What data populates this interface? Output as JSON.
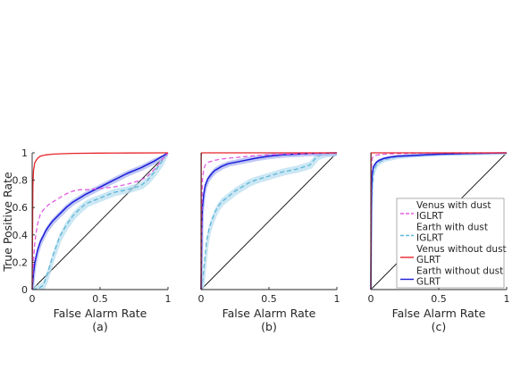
{
  "colors": {
    "venus_dust": "#e05ce0",
    "earth_dust": "#5fb6d6",
    "earth_dust_band": "#b9dff0",
    "venus_clear": "#e8242a",
    "earth_clear": "#1b1bd8",
    "earth_clear_band": "#aab4f2",
    "diagonal": "#111111",
    "axis": "#262626"
  },
  "ylabel": "True Positive Rate",
  "chart_data": [
    {
      "type": "line",
      "panel": "(a)",
      "xlabel": "False Alarm Rate",
      "xlim": [
        0,
        1
      ],
      "ylim": [
        0,
        1
      ],
      "xticks": [
        "0",
        "0.5",
        "1"
      ],
      "yticks": [
        "0",
        "0.2",
        "0.4",
        "0.6",
        "0.8",
        "1"
      ],
      "series": [
        {
          "key": "venus_dust",
          "x": [
            0,
            0.01,
            0.02,
            0.04,
            0.06,
            0.08,
            0.1,
            0.12,
            0.15,
            0.2,
            0.25,
            0.3,
            0.35,
            0.4,
            0.5,
            0.6,
            0.7,
            0.8,
            0.85,
            0.9,
            0.95,
            1
          ],
          "y": [
            0,
            0.22,
            0.35,
            0.48,
            0.55,
            0.58,
            0.6,
            0.62,
            0.64,
            0.67,
            0.7,
            0.72,
            0.73,
            0.73,
            0.74,
            0.75,
            0.77,
            0.8,
            0.83,
            0.88,
            0.94,
            1
          ]
        },
        {
          "key": "earth_dust",
          "x": [
            0,
            0.05,
            0.08,
            0.1,
            0.12,
            0.15,
            0.2,
            0.25,
            0.3,
            0.35,
            0.4,
            0.5,
            0.6,
            0.7,
            0.8,
            0.85,
            0.9,
            0.95,
            1
          ],
          "y": [
            0,
            0.01,
            0.03,
            0.08,
            0.14,
            0.24,
            0.38,
            0.47,
            0.54,
            0.59,
            0.63,
            0.67,
            0.71,
            0.73,
            0.76,
            0.8,
            0.86,
            0.93,
            1
          ],
          "band": 0.025
        },
        {
          "key": "venus_clear",
          "x": [
            0,
            0.005,
            0.01,
            0.02,
            0.04,
            0.06,
            0.1,
            0.15,
            0.2,
            0.3,
            0.5,
            0.7,
            1
          ],
          "y": [
            0,
            0.75,
            0.87,
            0.93,
            0.96,
            0.975,
            0.985,
            0.99,
            0.993,
            0.996,
            0.998,
            0.999,
            1
          ]
        },
        {
          "key": "earth_clear",
          "x": [
            0,
            0.01,
            0.02,
            0.04,
            0.06,
            0.08,
            0.1,
            0.12,
            0.15,
            0.2,
            0.25,
            0.3,
            0.35,
            0.4,
            0.5,
            0.6,
            0.7,
            0.8,
            0.9,
            1
          ],
          "y": [
            0,
            0.12,
            0.2,
            0.29,
            0.35,
            0.39,
            0.43,
            0.46,
            0.5,
            0.55,
            0.6,
            0.64,
            0.67,
            0.7,
            0.75,
            0.8,
            0.85,
            0.89,
            0.94,
            1
          ],
          "band": 0.02
        }
      ]
    },
    {
      "type": "line",
      "panel": "(b)",
      "xlabel": "False Alarm Rate",
      "xlim": [
        0,
        1
      ],
      "ylim": [
        0,
        1
      ],
      "xticks": [
        "0",
        "0.5",
        "1"
      ],
      "yticks": [],
      "series": [
        {
          "key": "venus_dust",
          "x": [
            0,
            0.005,
            0.01,
            0.02,
            0.03,
            0.05,
            0.08,
            0.1,
            0.15,
            0.2,
            0.3,
            0.4,
            0.5,
            0.6,
            0.8,
            1
          ],
          "y": [
            0,
            0.55,
            0.8,
            0.88,
            0.91,
            0.93,
            0.94,
            0.945,
            0.955,
            0.96,
            0.97,
            0.98,
            0.985,
            0.99,
            0.995,
            1
          ]
        },
        {
          "key": "earth_dust",
          "x": [
            0,
            0.01,
            0.02,
            0.03,
            0.04,
            0.06,
            0.08,
            0.1,
            0.12,
            0.15,
            0.2,
            0.25,
            0.3,
            0.35,
            0.4,
            0.5,
            0.6,
            0.7,
            0.8,
            0.85,
            0.9,
            1
          ],
          "y": [
            0,
            0.05,
            0.15,
            0.25,
            0.35,
            0.45,
            0.51,
            0.56,
            0.6,
            0.64,
            0.68,
            0.72,
            0.75,
            0.78,
            0.8,
            0.83,
            0.86,
            0.88,
            0.91,
            0.97,
            0.99,
            1
          ],
          "band": 0.025
        },
        {
          "key": "venus_clear",
          "x": [
            0,
            0.001,
            0.003,
            1
          ],
          "y": [
            0,
            0.98,
            1,
            1
          ]
        },
        {
          "key": "earth_clear",
          "x": [
            0,
            0.005,
            0.01,
            0.02,
            0.03,
            0.05,
            0.08,
            0.1,
            0.15,
            0.2,
            0.3,
            0.4,
            0.5,
            0.6,
            0.7,
            0.8,
            0.9,
            1
          ],
          "y": [
            0,
            0.45,
            0.6,
            0.7,
            0.76,
            0.81,
            0.85,
            0.87,
            0.9,
            0.92,
            0.94,
            0.96,
            0.975,
            0.985,
            0.99,
            0.995,
            0.998,
            1
          ],
          "band": 0.02
        }
      ]
    },
    {
      "type": "line",
      "panel": "(c)",
      "xlabel": "False Alarm Rate",
      "xlim": [
        0,
        1
      ],
      "ylim": [
        0,
        1
      ],
      "xticks": [
        "0",
        "0.5",
        "1"
      ],
      "yticks": [],
      "series": [
        {
          "key": "venus_dust",
          "x": [
            0,
            0.002,
            0.005,
            0.01,
            0.02,
            0.05,
            0.1,
            0.2,
            0.4,
            0.7,
            1
          ],
          "y": [
            0,
            0.8,
            0.92,
            0.96,
            0.975,
            0.985,
            0.99,
            0.995,
            0.998,
            0.999,
            1
          ]
        },
        {
          "key": "earth_dust",
          "x": [
            0,
            0.005,
            0.01,
            0.02,
            0.04,
            0.06,
            0.1,
            0.15,
            0.2,
            0.3,
            0.4,
            0.5,
            0.7,
            1
          ],
          "y": [
            0,
            0.55,
            0.75,
            0.86,
            0.91,
            0.93,
            0.95,
            0.96,
            0.97,
            0.98,
            0.985,
            0.99,
            0.995,
            1
          ],
          "band": 0.015
        },
        {
          "key": "venus_clear",
          "x": [
            0,
            0.001,
            0.002,
            1
          ],
          "y": [
            0,
            0.99,
            1,
            1
          ]
        },
        {
          "key": "earth_clear",
          "x": [
            0,
            0.003,
            0.005,
            0.01,
            0.02,
            0.04,
            0.06,
            0.1,
            0.15,
            0.2,
            0.3,
            0.4,
            0.5,
            0.7,
            1
          ],
          "y": [
            0,
            0.6,
            0.75,
            0.85,
            0.9,
            0.93,
            0.945,
            0.96,
            0.97,
            0.975,
            0.98,
            0.985,
            0.99,
            0.995,
            1
          ],
          "band": 0.01
        }
      ]
    }
  ],
  "legend": {
    "placement": "lower-right of panel (c)",
    "entries": [
      {
        "key": "venus_dust",
        "style": "dashed",
        "line1": "Venus with dust",
        "line2": "IGLRT"
      },
      {
        "key": "earth_dust",
        "style": "dashed",
        "line1": "Earth with dust",
        "line2": "IGLRT"
      },
      {
        "key": "venus_clear",
        "style": "solid",
        "line1": "Venus without dust",
        "line2": "GLRT"
      },
      {
        "key": "earth_clear",
        "style": "solid",
        "line1": "Earth without dust",
        "line2": "GLRT"
      }
    ]
  }
}
